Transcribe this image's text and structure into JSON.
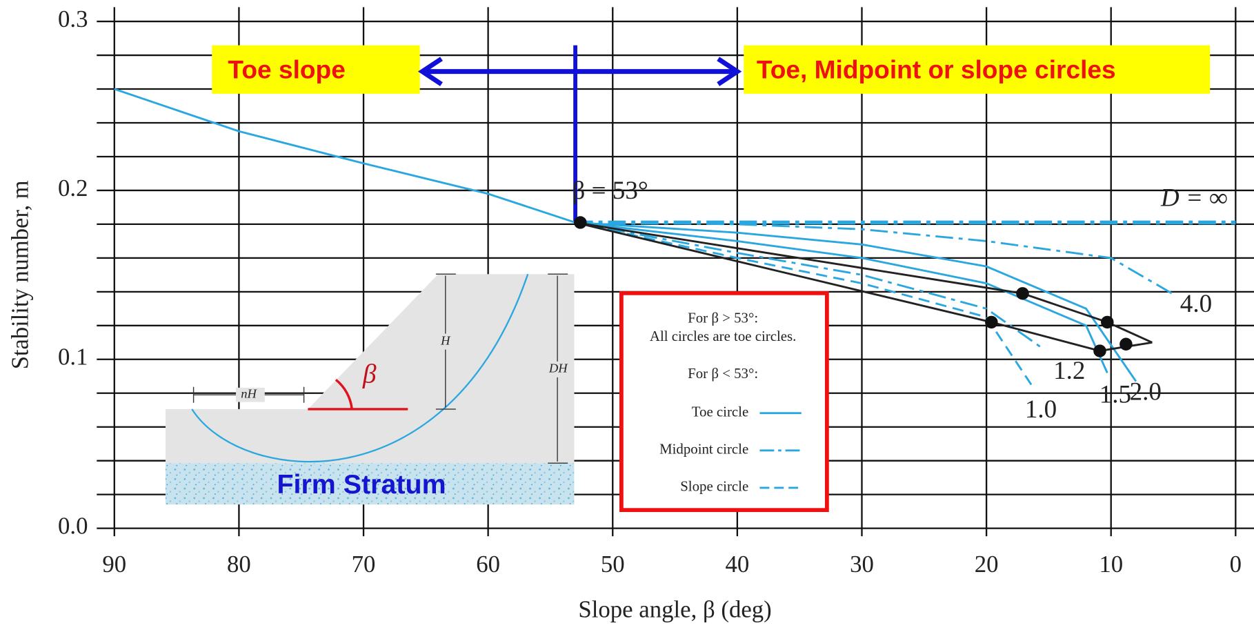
{
  "chart_data": {
    "type": "line",
    "x_label": "Slope angle, β (deg)",
    "y_label": "Stability number, m",
    "xlim": [
      90,
      0
    ],
    "ylim": [
      0,
      0.3
    ],
    "xticks": [
      90,
      80,
      70,
      60,
      50,
      40,
      30,
      20,
      10,
      0
    ],
    "yticks": [
      {
        "value": 0,
        "label": "0.0"
      },
      0.1,
      0.2,
      0.3
    ],
    "ygrid": [
      0,
      0.02,
      0.04,
      0.06,
      0.08,
      0.1,
      0.12,
      0.14,
      0.16,
      0.18,
      0.2,
      0.22,
      0.24,
      0.26,
      0.28,
      0.3
    ],
    "grid": true,
    "color": "#2aa7df",
    "series": [
      {
        "x": [
          90,
          80,
          70,
          60,
          53
        ],
        "values": [
          0.26,
          0.235,
          0.216,
          0.198,
          0.181
        ],
        "color": "#2aa7df",
        "style": "solid"
      },
      {
        "name": "D = ∞",
        "x": [
          53,
          0
        ],
        "values": [
          0.181,
          0.181
        ],
        "color": "#2aa7df",
        "style": "dashdot"
      },
      {
        "name": "4.0",
        "x": [
          53,
          40,
          30,
          20,
          10,
          5.1
        ],
        "values": [
          0.181,
          0.18,
          0.177,
          0.17,
          0.16,
          0.139
        ],
        "color": "#2aa7df",
        "style": "dashdot"
      },
      {
        "name": "2.0",
        "x": [
          53,
          40,
          30,
          20,
          12,
          8
        ],
        "values": [
          0.181,
          0.175,
          0.168,
          0.155,
          0.13,
          0.087
        ],
        "color": "#2aa7df",
        "style": "solid"
      },
      {
        "name": "1.5",
        "x": [
          53,
          40,
          30,
          20,
          12,
          10.3
        ],
        "values": [
          0.181,
          0.17,
          0.16,
          0.145,
          0.12,
          0.092
        ],
        "color": "#2aa7df",
        "style": "solid"
      },
      {
        "name": "1.2",
        "x": [
          53,
          40,
          30,
          20,
          15.4
        ],
        "values": [
          0.181,
          0.163,
          0.15,
          0.13,
          0.106
        ],
        "color": "#2aa7df",
        "style": "dashdot"
      },
      {
        "name": "1.0",
        "x": [
          53,
          40,
          30,
          20,
          16.4
        ],
        "values": [
          0.181,
          0.16,
          0.145,
          0.125,
          0.085
        ],
        "color": "#2aa7df",
        "style": "dashed"
      },
      {
        "x": [
          53,
          17.1,
          10.3,
          6.7
        ],
        "values": [
          0.181,
          0.139,
          0.122,
          0.11
        ],
        "color": "#222222",
        "style": "solid"
      },
      {
        "x": [
          53,
          19.6,
          10.9,
          6.7
        ],
        "values": [
          0.181,
          0.122,
          0.105,
          0.11
        ],
        "color": "#222222",
        "style": "solid"
      }
    ],
    "points": {
      "x": [
        52.6,
        19.6,
        17.1,
        10.3,
        10.9,
        8.8
      ],
      "values": [
        0.181,
        0.122,
        0.139,
        0.122,
        0.105,
        0.109
      ],
      "color": "#111111"
    },
    "threshold": {
      "value": 53,
      "label": "β = 53°",
      "color": "#1010d8"
    },
    "annotations": {
      "left": "Toe slope",
      "right": "Toe, Midpoint or slope circles"
    },
    "legend": {
      "lines": [
        "For β > 53°:",
        "All circles are toe circles.",
        "For β < 53°:"
      ],
      "entries": [
        {
          "label": "Toe circle",
          "style": "solid"
        },
        {
          "label": "Midpoint circle",
          "style": "dashdot"
        },
        {
          "label": "Slope circle",
          "style": "dashed"
        }
      ]
    },
    "diagram": {
      "nH": "nH",
      "H": "H",
      "DH": "DH",
      "angle": "β",
      "stratum": "Firm Stratum"
    }
  }
}
